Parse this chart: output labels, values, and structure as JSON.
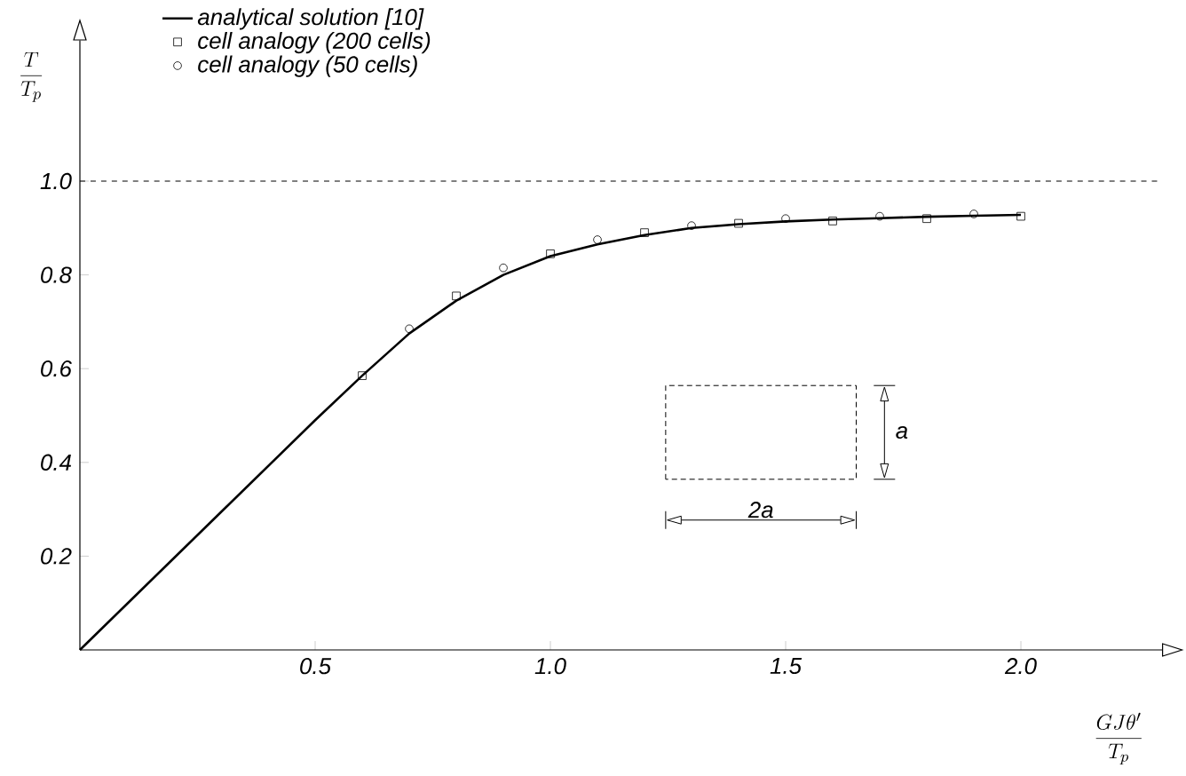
{
  "chart_data": {
    "type": "line",
    "xlabel": "\\frac{GJ\\theta'}{T_p}",
    "ylabel": "\\frac{T}{T_p}",
    "xlim": [
      0,
      2.3
    ],
    "ylim": [
      0,
      1.3
    ],
    "xticks": [
      {
        "value": 0.5,
        "label": "0.5"
      },
      {
        "value": 1.0,
        "label": "1.0"
      },
      {
        "value": 1.5,
        "label": "1.5"
      },
      {
        "value": 2.0,
        "label": "2.0"
      }
    ],
    "yticks": [
      {
        "value": 0.2,
        "label": "0.2"
      },
      {
        "value": 0.4,
        "label": "0.4"
      },
      {
        "value": 0.6,
        "label": "0.6"
      },
      {
        "value": 0.8,
        "label": "0.8"
      },
      {
        "value": 1.0,
        "label": "1.0"
      }
    ],
    "legend": "top",
    "series": [
      {
        "name": "analytical solution [10]",
        "marker": "none",
        "line_style": "solid",
        "color": "#000000",
        "x": [
          0,
          0.5,
          0.6,
          0.7,
          0.8,
          0.9,
          1.0,
          1.1,
          1.2,
          1.3,
          1.4,
          1.5,
          1.6,
          1.7,
          1.8,
          1.9,
          2.0
        ],
        "values": [
          0,
          0.49,
          0.585,
          0.675,
          0.745,
          0.8,
          0.84,
          0.865,
          0.885,
          0.9,
          0.908,
          0.914,
          0.918,
          0.921,
          0.924,
          0.926,
          0.928
        ]
      },
      {
        "name": "cell analogy (200 cells)",
        "type": "scatter",
        "marker": "square",
        "color": "#000000",
        "x": [
          0.6,
          0.8,
          1.0,
          1.2,
          1.4,
          1.6,
          1.8,
          2.0
        ],
        "values": [
          0.585,
          0.755,
          0.845,
          0.89,
          0.91,
          0.915,
          0.92,
          0.925
        ]
      },
      {
        "name": "cell analogy (50 cells)",
        "type": "scatter",
        "marker": "circle",
        "color": "#000000",
        "x": [
          0.7,
          0.9,
          1.1,
          1.3,
          1.5,
          1.7,
          1.9
        ],
        "values": [
          0.685,
          0.815,
          0.875,
          0.905,
          0.92,
          0.925,
          0.93
        ]
      }
    ],
    "ref_lines": [
      {
        "axis": "y",
        "value": 1.0,
        "line_style": "dashed",
        "color": "#000000"
      }
    ],
    "annotations": [
      "2a",
      "a"
    ]
  }
}
